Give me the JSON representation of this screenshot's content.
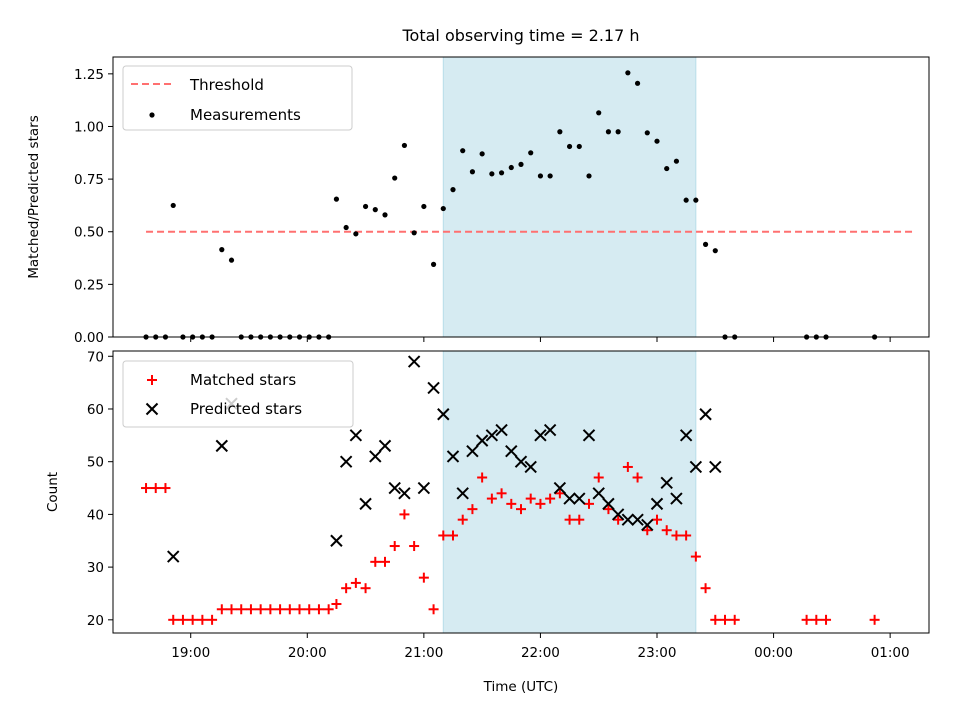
{
  "chart_data": [
    {
      "type": "scatter",
      "title": "Total observing time = 2.17 h",
      "xlabel": "",
      "ylabel": "Matched/Predicted stars",
      "xlim": [
        "18:20",
        "01:20"
      ],
      "ylim": [
        0,
        1.33
      ],
      "yticks": [
        "0.00",
        "0.25",
        "0.50",
        "0.75",
        "1.00",
        "1.25"
      ],
      "legend_position": "upper-left",
      "shaded_span": {
        "x": [
          "21:10",
          "23:20"
        ],
        "color": "#add8e6"
      },
      "threshold": {
        "name": "Threshold",
        "value": 0.5,
        "x": [
          "18:37",
          "01:12"
        ],
        "color": "#ff7070",
        "style": "dashed"
      },
      "series": [
        {
          "name": "Measurements",
          "marker": "dot",
          "color": "#000000",
          "points": [
            [
              "18:37",
              0
            ],
            [
              "18:42",
              0
            ],
            [
              "18:47",
              0
            ],
            [
              "18:51",
              0.625
            ],
            [
              "18:56",
              0
            ],
            [
              "19:01",
              0
            ],
            [
              "19:06",
              0
            ],
            [
              "19:11",
              0
            ],
            [
              "19:16",
              0.415
            ],
            [
              "19:21",
              0.365
            ],
            [
              "19:26",
              0
            ],
            [
              "19:31",
              0
            ],
            [
              "19:36",
              0
            ],
            [
              "19:41",
              0
            ],
            [
              "19:46",
              0
            ],
            [
              "19:51",
              0
            ],
            [
              "19:56",
              0
            ],
            [
              "20:01",
              0
            ],
            [
              "20:06",
              0
            ],
            [
              "20:11",
              0
            ],
            [
              "20:15",
              0.655
            ],
            [
              "20:20",
              0.52
            ],
            [
              "20:25",
              0.49
            ],
            [
              "20:30",
              0.62
            ],
            [
              "20:35",
              0.605
            ],
            [
              "20:40",
              0.58
            ],
            [
              "20:45",
              0.755
            ],
            [
              "20:50",
              0.91
            ],
            [
              "20:55",
              0.495
            ],
            [
              "21:00",
              0.62
            ],
            [
              "21:05",
              0.345
            ],
            [
              "21:10",
              0.61
            ],
            [
              "21:15",
              0.7
            ],
            [
              "21:20",
              0.885
            ],
            [
              "21:25",
              0.785
            ],
            [
              "21:30",
              0.87
            ],
            [
              "21:35",
              0.775
            ],
            [
              "21:40",
              0.78
            ],
            [
              "21:45",
              0.805
            ],
            [
              "21:50",
              0.82
            ],
            [
              "21:55",
              0.875
            ],
            [
              "22:00",
              0.765
            ],
            [
              "22:05",
              0.765
            ],
            [
              "22:10",
              0.975
            ],
            [
              "22:15",
              0.905
            ],
            [
              "22:20",
              0.905
            ],
            [
              "22:25",
              0.765
            ],
            [
              "22:30",
              1.065
            ],
            [
              "22:35",
              0.975
            ],
            [
              "22:40",
              0.975
            ],
            [
              "22:45",
              1.255
            ],
            [
              "22:50",
              1.205
            ],
            [
              "22:55",
              0.97
            ],
            [
              "23:00",
              0.93
            ],
            [
              "23:05",
              0.8
            ],
            [
              "23:10",
              0.835
            ],
            [
              "23:15",
              0.65
            ],
            [
              "23:20",
              0.65
            ],
            [
              "23:25",
              0.44
            ],
            [
              "23:30",
              0.41
            ],
            [
              "23:35",
              0
            ],
            [
              "23:40",
              0
            ],
            [
              "00:17",
              0
            ],
            [
              "00:22",
              0
            ],
            [
              "00:27",
              0
            ],
            [
              "00:52",
              0
            ]
          ]
        }
      ]
    },
    {
      "type": "scatter",
      "title": "",
      "xlabel": "Time (UTC)",
      "ylabel": "Count",
      "xlim": [
        "18:20",
        "01:20"
      ],
      "ylim": [
        17.5,
        71
      ],
      "yticks": [
        "20",
        "30",
        "40",
        "50",
        "60",
        "70"
      ],
      "xticks": [
        "19:00",
        "20:00",
        "21:00",
        "22:00",
        "23:00",
        "00:00",
        "01:00"
      ],
      "legend_position": "upper-left",
      "shaded_span": {
        "x": [
          "21:10",
          "23:20"
        ],
        "color": "#add8e6"
      },
      "series": [
        {
          "name": "Matched stars",
          "marker": "plus",
          "color": "#ff0000",
          "points": [
            [
              "18:37",
              45
            ],
            [
              "18:42",
              45
            ],
            [
              "18:47",
              45
            ],
            [
              "18:51",
              20
            ],
            [
              "18:56",
              20
            ],
            [
              "19:01",
              20
            ],
            [
              "19:06",
              20
            ],
            [
              "19:11",
              20
            ],
            [
              "19:16",
              22
            ],
            [
              "19:21",
              22
            ],
            [
              "19:26",
              22
            ],
            [
              "19:31",
              22
            ],
            [
              "19:36",
              22
            ],
            [
              "19:41",
              22
            ],
            [
              "19:46",
              22
            ],
            [
              "19:51",
              22
            ],
            [
              "19:56",
              22
            ],
            [
              "20:01",
              22
            ],
            [
              "20:06",
              22
            ],
            [
              "20:11",
              22
            ],
            [
              "20:15",
              23
            ],
            [
              "20:20",
              26
            ],
            [
              "20:25",
              27
            ],
            [
              "20:30",
              26
            ],
            [
              "20:35",
              31
            ],
            [
              "20:40",
              31
            ],
            [
              "20:45",
              34
            ],
            [
              "20:50",
              40
            ],
            [
              "20:55",
              34
            ],
            [
              "21:00",
              28
            ],
            [
              "21:05",
              22
            ],
            [
              "21:10",
              36
            ],
            [
              "21:15",
              36
            ],
            [
              "21:20",
              39
            ],
            [
              "21:25",
              41
            ],
            [
              "21:30",
              47
            ],
            [
              "21:35",
              43
            ],
            [
              "21:40",
              44
            ],
            [
              "21:45",
              42
            ],
            [
              "21:50",
              41
            ],
            [
              "21:55",
              43
            ],
            [
              "22:00",
              42
            ],
            [
              "22:05",
              43
            ],
            [
              "22:10",
              44
            ],
            [
              "22:15",
              39
            ],
            [
              "22:20",
              39
            ],
            [
              "22:25",
              42
            ],
            [
              "22:30",
              47
            ],
            [
              "22:35",
              41
            ],
            [
              "22:40",
              39
            ],
            [
              "22:45",
              49
            ],
            [
              "22:50",
              47
            ],
            [
              "22:55",
              37
            ],
            [
              "23:00",
              39
            ],
            [
              "23:05",
              37
            ],
            [
              "23:10",
              36
            ],
            [
              "23:15",
              36
            ],
            [
              "23:20",
              32
            ],
            [
              "23:25",
              26
            ],
            [
              "23:30",
              20
            ],
            [
              "23:35",
              20
            ],
            [
              "23:40",
              20
            ],
            [
              "00:17",
              20
            ],
            [
              "00:22",
              20
            ],
            [
              "00:27",
              20
            ],
            [
              "00:52",
              20
            ]
          ]
        },
        {
          "name": "Predicted stars",
          "marker": "cross",
          "color": "#000000",
          "points": [
            [
              "18:51",
              32
            ],
            [
              "19:16",
              53
            ],
            [
              "19:21",
              61
            ],
            [
              "20:15",
              35
            ],
            [
              "20:20",
              50
            ],
            [
              "20:25",
              55
            ],
            [
              "20:30",
              42
            ],
            [
              "20:35",
              51
            ],
            [
              "20:40",
              53
            ],
            [
              "20:45",
              45
            ],
            [
              "20:50",
              44
            ],
            [
              "20:55",
              69
            ],
            [
              "21:00",
              45
            ],
            [
              "21:05",
              64
            ],
            [
              "21:10",
              59
            ],
            [
              "21:15",
              51
            ],
            [
              "21:20",
              44
            ],
            [
              "21:25",
              52
            ],
            [
              "21:30",
              54
            ],
            [
              "21:35",
              55
            ],
            [
              "21:40",
              56
            ],
            [
              "21:45",
              52
            ],
            [
              "21:50",
              50
            ],
            [
              "21:55",
              49
            ],
            [
              "22:00",
              55
            ],
            [
              "22:05",
              56
            ],
            [
              "22:10",
              45
            ],
            [
              "22:15",
              43
            ],
            [
              "22:20",
              43
            ],
            [
              "22:25",
              55
            ],
            [
              "22:30",
              44
            ],
            [
              "22:35",
              42
            ],
            [
              "22:40",
              40
            ],
            [
              "22:45",
              39
            ],
            [
              "22:50",
              39
            ],
            [
              "22:55",
              38
            ],
            [
              "23:00",
              42
            ],
            [
              "23:05",
              46
            ],
            [
              "23:10",
              43
            ],
            [
              "23:15",
              55
            ],
            [
              "23:20",
              49
            ],
            [
              "23:25",
              59
            ],
            [
              "23:30",
              49
            ]
          ]
        }
      ]
    }
  ]
}
